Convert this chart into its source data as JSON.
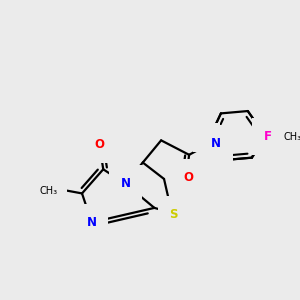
{
  "background_color": "#ebebeb",
  "atom_colors": {
    "N": "#0000ff",
    "O": "#ff0000",
    "S": "#cccc00",
    "F": "#ff00cc",
    "H": "#008888",
    "C": "#000000"
  },
  "figsize": [
    3.0,
    3.0
  ],
  "dpi": 100
}
